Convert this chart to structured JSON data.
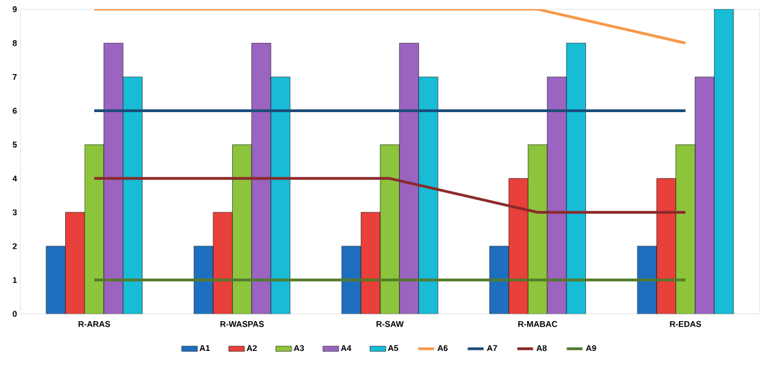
{
  "chart_data": {
    "type": "bar",
    "categories": [
      "R-ARAS",
      "R-WASPAS",
      "R-SAW",
      "R-MABAC",
      "R-EDAS"
    ],
    "series": [
      {
        "name": "A1",
        "color": "#1f6fc0",
        "values": [
          2,
          2,
          2,
          2,
          2
        ]
      },
      {
        "name": "A2",
        "color": "#e8403a",
        "values": [
          3,
          3,
          3,
          4,
          4
        ]
      },
      {
        "name": "A3",
        "color": "#8cc43c",
        "values": [
          5,
          5,
          5,
          5,
          5
        ]
      },
      {
        "name": "A4",
        "color": "#9a64c0",
        "values": [
          8,
          8,
          8,
          7,
          7
        ]
      },
      {
        "name": "A5",
        "color": "#18bcd6",
        "values": [
          7,
          7,
          7,
          8,
          9
        ]
      },
      {
        "name": "A6",
        "type": "line",
        "color": "#f7994a",
        "values": [
          9,
          9,
          9,
          9,
          8
        ]
      },
      {
        "name": "A7",
        "type": "line",
        "color": "#1b4e7c",
        "values": [
          6,
          6,
          6,
          6,
          6
        ]
      },
      {
        "name": "A8",
        "type": "line",
        "color": "#8c2a2a",
        "values": [
          4,
          4,
          4,
          3,
          3
        ]
      },
      {
        "name": "A9",
        "type": "line",
        "color": "#537a2a",
        "values": [
          1,
          1,
          1,
          1,
          1
        ]
      }
    ],
    "ylim": [
      0,
      9
    ],
    "yticks": [
      0,
      1,
      2,
      3,
      4,
      5,
      6,
      7,
      8,
      9
    ],
    "grid": false,
    "legend": "bottom",
    "marker": "none",
    "line_style": "solid"
  }
}
